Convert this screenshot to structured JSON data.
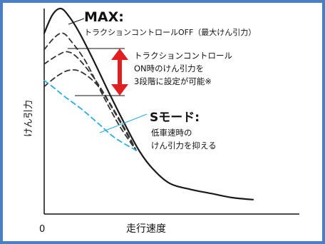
{
  "chart_data": {
    "type": "line",
    "xlabel": "走行速度",
    "ylabel": "けん引力",
    "x_tick_labels": [
      "0"
    ],
    "xlim": [
      0,
      100
    ],
    "ylim": [
      0,
      100
    ],
    "series": [
      {
        "style": "solid",
        "color": "#1a1a1a",
        "x": [
          0,
          4,
          8,
          12,
          17,
          24,
          32,
          40,
          46,
          52,
          60,
          70,
          80,
          90,
          100
        ],
        "y": [
          88,
          97,
          100,
          96,
          88,
          74,
          57,
          41,
          30,
          22,
          15,
          12,
          10,
          8,
          7
        ]
      },
      {
        "style": "dashed",
        "color": "#333333",
        "x": [
          0,
          5,
          9,
          13,
          20,
          28,
          36,
          44
        ],
        "y": [
          80,
          86,
          88,
          84,
          74,
          58,
          43,
          31
        ]
      },
      {
        "style": "dashed",
        "color": "#333333",
        "x": [
          0,
          6,
          11,
          16,
          24,
          32,
          40,
          44
        ],
        "y": [
          73,
          77,
          79,
          76,
          66,
          53,
          39,
          31
        ]
      },
      {
        "style": "dashed",
        "color": "#333333",
        "x": [
          0,
          6,
          12,
          18,
          26,
          34,
          44
        ],
        "y": [
          62,
          67,
          70,
          69,
          62,
          49,
          31
        ]
      },
      {
        "style": "dashed",
        "color": "#2aaee0",
        "x": [
          0,
          4,
          10,
          18,
          26,
          34,
          44
        ],
        "y": [
          65,
          62,
          57,
          51,
          44,
          37,
          31
        ]
      }
    ],
    "annotations": {
      "max_title": "MAX:",
      "max_desc": "トラクションコントロールOFF（最大けん引力）",
      "range_line1": "トラクションコントロール",
      "range_line2": "ON時のけん引力を",
      "range_line3": "3段階に設定が可能※",
      "smode_title": "Sモード:",
      "smode_line1": "低車速時の",
      "smode_line2": "けん引力を抑える"
    },
    "colors": {
      "frame": "#4a7fc4",
      "arrow": "#e02020",
      "smode": "#2aaee0"
    }
  }
}
